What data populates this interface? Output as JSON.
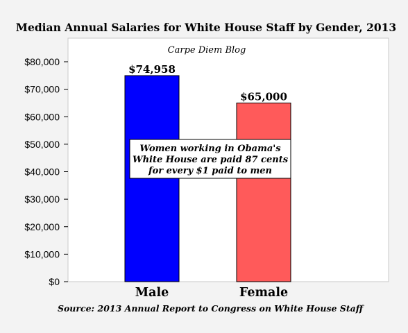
{
  "chart_data": {
    "type": "bar",
    "title": "Median Annual Salaries for White House Staff by Gender, 2013",
    "subtitle": "Carpe Diem Blog",
    "categories": [
      "Male",
      "Female"
    ],
    "values": [
      74958,
      65000
    ],
    "value_labels": [
      "$74,958",
      "$65,000"
    ],
    "bar_colors": [
      "#0000ff",
      "#ff5a5a"
    ],
    "ylim": [
      0,
      80000
    ],
    "yticks": [
      0,
      10000,
      20000,
      30000,
      40000,
      50000,
      60000,
      70000,
      80000
    ],
    "ytick_labels": [
      "$0",
      "$10,000",
      "$20,000",
      "$30,000",
      "$40,000",
      "$50,000",
      "$60,000",
      "$70,000",
      "$80,000"
    ],
    "annotation": [
      "Women working in Obama's",
      "White House are paid 87 cents",
      "for every $1 paid to men"
    ],
    "source": "Source: 2013 Annual Report to Congress on White House Staff",
    "grid": false,
    "legend": "none",
    "plot_background": "#ffffff",
    "page_background": "#f3f3f3"
  }
}
